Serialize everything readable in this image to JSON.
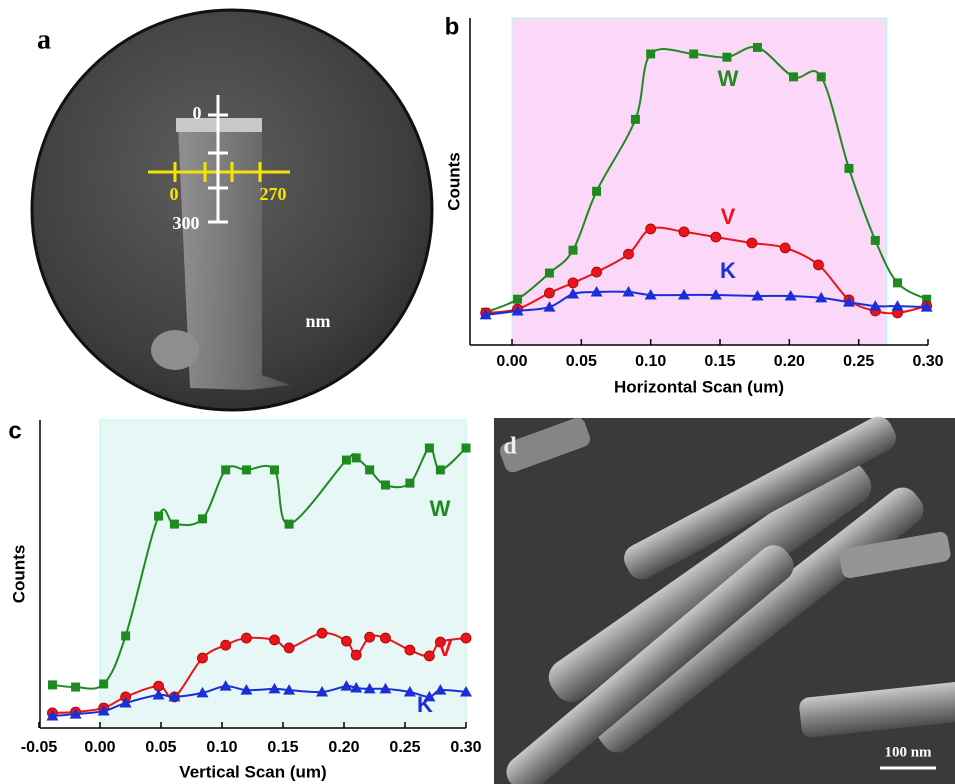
{
  "chart_data": [
    {
      "type": "line",
      "panel_label": "b",
      "xlabel": "Horizontal  Scan (um)",
      "ylabel": "Counts",
      "xlim": [
        -0.03,
        0.3
      ],
      "ylim": [
        0,
        100
      ],
      "xticks": [
        {
          "value": 0,
          "label": "0.00"
        },
        0.05,
        {
          "value": 0.1,
          "label": "0.10"
        },
        0.15,
        {
          "value": 0.2,
          "label": "0.20"
        },
        0.25,
        {
          "value": 0.3,
          "label": "0.30"
        }
      ],
      "highlight_range": [
        0,
        0.27
      ],
      "highlight_color": "#fcd8f8",
      "series": [
        {
          "name": "W",
          "color": "#1f8a1f",
          "marker": "square",
          "x": [
            -0.019,
            0.004,
            0.027,
            0.044,
            0.061,
            0.089,
            0.1,
            0.131,
            0.155,
            0.177,
            0.203,
            0.223,
            0.243,
            0.262,
            0.278,
            0.299
          ],
          "values": [
            10,
            14,
            22,
            29,
            47,
            69,
            89,
            89,
            88,
            91,
            82,
            82,
            54,
            32,
            19,
            14
          ]
        },
        {
          "name": "V",
          "color": "#e8151b",
          "marker": "circle",
          "x": [
            -0.019,
            0.004,
            0.027,
            0.044,
            0.061,
            0.084,
            0.1,
            0.124,
            0.147,
            0.173,
            0.197,
            0.221,
            0.243,
            0.262,
            0.278,
            0.299
          ],
          "values": [
            9.8,
            11,
            15.9,
            19,
            22.3,
            27.8,
            35.5,
            34.6,
            33,
            31.2,
            29.7,
            24.5,
            13.8,
            10.4,
            9.8,
            11.9
          ]
        },
        {
          "name": "K",
          "color": "#1a2fd6",
          "marker": "triangle",
          "x": [
            -0.019,
            0.004,
            0.027,
            0.044,
            0.061,
            0.084,
            0.1,
            0.124,
            0.147,
            0.177,
            0.201,
            0.223,
            0.243,
            0.262,
            0.278,
            0.299
          ],
          "values": [
            9.2,
            10.4,
            11.6,
            15.6,
            16.2,
            16.2,
            15.3,
            15.3,
            15.3,
            15,
            15,
            14.4,
            13.1,
            11.9,
            11.9,
            11.6
          ]
        }
      ]
    },
    {
      "type": "line",
      "panel_label": "c",
      "xlabel": "Vertical Scan (um)",
      "ylabel": "Counts",
      "xlim": [
        -0.05,
        0.3
      ],
      "ylim": [
        0,
        100
      ],
      "xticks": [
        -0.05,
        {
          "value": 0,
          "label": "0.00"
        },
        0.05,
        {
          "value": 0.1,
          "label": "0.10"
        },
        0.15,
        {
          "value": 0.2,
          "label": "0.20"
        },
        0.25,
        {
          "value": 0.3,
          "label": "0.30"
        }
      ],
      "highlight_range": [
        0,
        0.3
      ],
      "highlight_color": "#e6f7f6",
      "series": [
        {
          "name": "W",
          "color": "#1f8a1f",
          "marker": "square",
          "x": [
            -0.039,
            -0.02,
            0.003,
            0.021,
            0.048,
            0.061,
            0.084,
            0.103,
            0.12,
            0.143,
            0.155,
            0.202,
            0.21,
            0.221,
            0.234,
            0.254,
            0.27,
            0.279,
            0.3
          ],
          "values": [
            14,
            13.3,
            14.3,
            29.9,
            68.8,
            66.2,
            67.9,
            83.8,
            83.8,
            83.8,
            66.2,
            87,
            87.7,
            83.8,
            78.9,
            79.5,
            90.9,
            83.8,
            90.9
          ]
        },
        {
          "name": "V",
          "color": "#e8151b",
          "marker": "circle",
          "x": [
            -0.039,
            -0.02,
            0.003,
            0.021,
            0.048,
            0.061,
            0.084,
            0.103,
            0.12,
            0.143,
            0.155,
            0.182,
            0.202,
            0.21,
            0.221,
            0.234,
            0.254,
            0.27,
            0.279,
            0.3
          ],
          "values": [
            4.9,
            5.2,
            6.5,
            10.1,
            13.6,
            10.1,
            22.7,
            26.9,
            29.2,
            28.6,
            26,
            30.8,
            28.2,
            23.7,
            29.5,
            29.2,
            25.3,
            23.4,
            27.9,
            29.2
          ]
        },
        {
          "name": "K",
          "color": "#1a2fd6",
          "marker": "triangle",
          "x": [
            -0.039,
            -0.02,
            0.003,
            0.021,
            0.048,
            0.061,
            0.084,
            0.103,
            0.12,
            0.143,
            0.155,
            0.182,
            0.202,
            0.21,
            0.221,
            0.234,
            0.254,
            0.27,
            0.279,
            0.3
          ],
          "values": [
            3.9,
            4.5,
            5.5,
            8.1,
            10.7,
            10.1,
            11.4,
            13.6,
            12.3,
            12.7,
            12.3,
            11.7,
            13.6,
            13,
            12.7,
            12.7,
            11.7,
            10.1,
            12.3,
            11.7
          ]
        }
      ]
    }
  ],
  "image_a": {
    "panel_label": "a",
    "vertical_start": "0",
    "vertical_end": "300",
    "horizontal_start": "0",
    "horizontal_end": "270",
    "unit": "nm"
  },
  "image_d": {
    "panel_label": "d",
    "scale_bar": "100 nm"
  }
}
